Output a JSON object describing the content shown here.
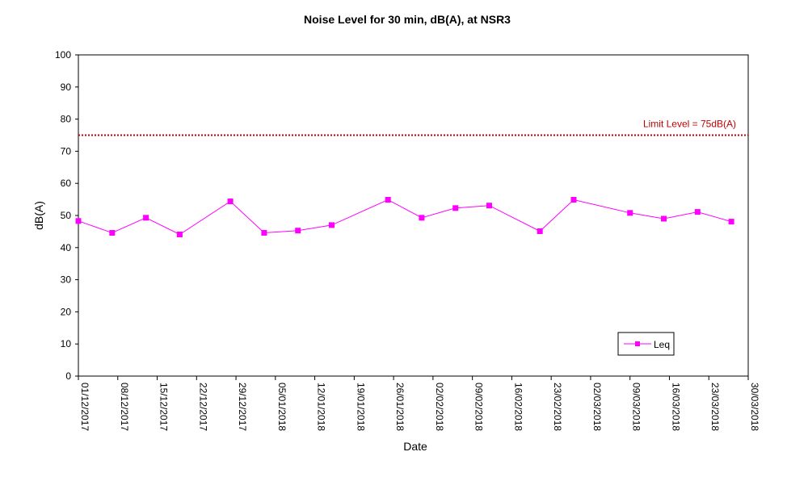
{
  "chart_data": {
    "type": "line",
    "title": "Noise Level for 30 min, dB(A), at NSR3",
    "xlabel": "Date",
    "ylabel": "dB(A)",
    "ylim": [
      0,
      100
    ],
    "yticks": [
      0,
      10,
      20,
      30,
      40,
      50,
      60,
      70,
      80,
      90,
      100
    ],
    "xlim": [
      "01/12/2017",
      "30/03/2018"
    ],
    "xticks": [
      "01/12/2017",
      "08/12/2017",
      "15/12/2017",
      "22/12/2017",
      "29/12/2017",
      "05/01/2018",
      "12/01/2018",
      "19/01/2018",
      "26/01/2018",
      "02/02/2018",
      "09/02/2018",
      "16/02/2018",
      "23/02/2018",
      "02/03/2018",
      "09/03/2018",
      "16/03/2018",
      "23/03/2018",
      "30/03/2018"
    ],
    "grid": false,
    "legend": "bottom-right",
    "series": [
      {
        "name": "Leq",
        "color": "#ff00ff",
        "marker": "square",
        "x": [
          "01/12/2017",
          "07/12/2017",
          "13/12/2017",
          "19/12/2017",
          "28/12/2017",
          "03/01/2018",
          "09/01/2018",
          "15/01/2018",
          "25/01/2018",
          "31/01/2018",
          "06/02/2018",
          "12/02/2018",
          "21/02/2018",
          "27/02/2018",
          "09/03/2018",
          "15/03/2018",
          "21/03/2018",
          "27/03/2018"
        ],
        "values": [
          48.3,
          44.6,
          49.3,
          44.1,
          54.4,
          44.6,
          45.3,
          47.0,
          54.9,
          49.3,
          52.3,
          53.1,
          45.1,
          54.9,
          50.8,
          49.0,
          51.1,
          48.1
        ]
      }
    ],
    "limit_line": {
      "label": "Limit Level = 75dB(A)",
      "value": 75,
      "color": "#c00000"
    }
  }
}
